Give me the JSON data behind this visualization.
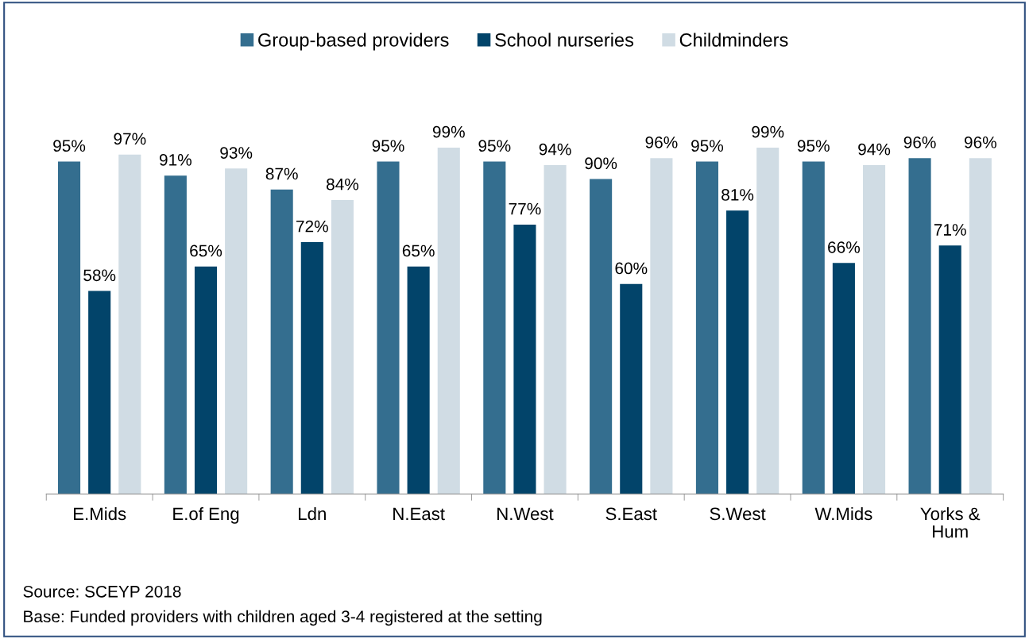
{
  "chart_data": {
    "type": "bar",
    "categories": [
      "E.Mids",
      "E.of Eng",
      "Ldn",
      "N.East",
      "N.West",
      "S.East",
      "S.West",
      "W.Mids",
      "Yorks &\nHum"
    ],
    "series": [
      {
        "name": "Group-based providers",
        "color": "#346e8f",
        "values": [
          95,
          91,
          87,
          95,
          95,
          90,
          95,
          95,
          96
        ],
        "value_labels": [
          "95%",
          "91%",
          "87%",
          "95%",
          "95%",
          "90%",
          "95%",
          "95%",
          "96%"
        ]
      },
      {
        "name": "School nurseries",
        "color": "#02446a",
        "values": [
          58,
          65,
          72,
          65,
          77,
          60,
          81,
          66,
          71
        ],
        "value_labels": [
          "58%",
          "65%",
          "72%",
          "65%",
          "77%",
          "60%",
          "81%",
          "66%",
          "71%"
        ]
      },
      {
        "name": "Childminders",
        "color": "#d0dce4",
        "values": [
          97,
          93,
          84,
          99,
          94,
          96,
          99,
          94,
          96
        ],
        "value_labels": [
          "97%",
          "93%",
          "84%",
          "99%",
          "94%",
          "96%",
          "99%",
          "94%",
          "96%"
        ]
      }
    ],
    "legend": "top",
    "grid": false,
    "annotations": [
      "Source: SCEYP 2018",
      "Base: Funded providers with children aged 3-4 registered at the setting"
    ]
  }
}
